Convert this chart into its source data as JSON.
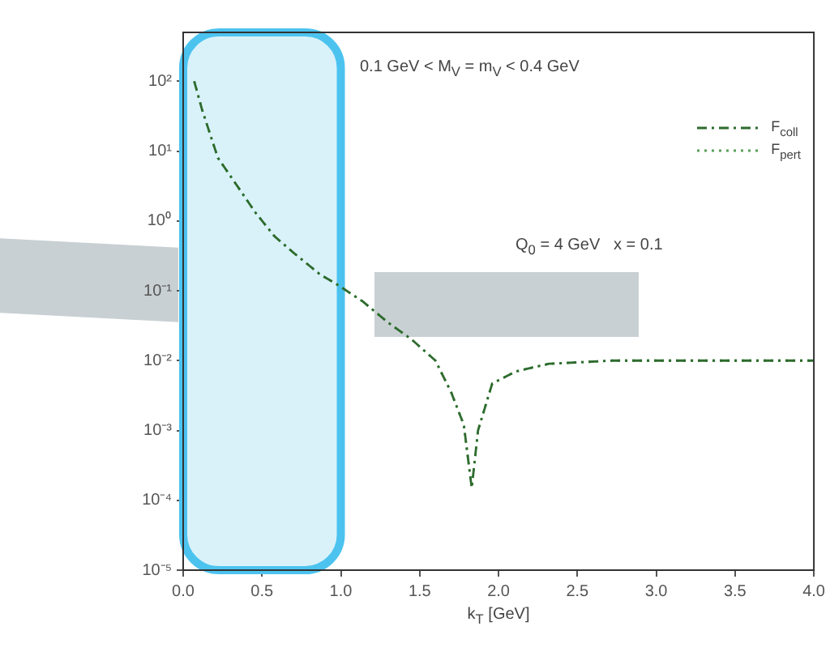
{
  "chart_data": {
    "type": "line",
    "annotations": [
      "0.1 GeV < M$_{V}$ = m$_{V}$ < 0.4 GeV",
      "Q$_{0}$ = 4 GeV   x = 0.1"
    ],
    "xlabel": "k$_{T}$ [GeV]",
    "x": [
      0.07,
      0.12,
      0.22,
      0.35,
      0.46,
      0.58,
      0.7,
      0.87,
      0.96,
      1.14,
      1.3,
      1.45,
      1.6,
      1.7,
      1.78,
      1.83,
      1.87,
      1.96,
      2.11,
      2.32,
      2.72,
      3.23,
      3.64,
      4.0
    ],
    "series": [
      {
        "name": "F$_{coll}$",
        "color": "#2e6b2e",
        "line_style": "dashed",
        "values": [
          100,
          39,
          8,
          3,
          1.3,
          0.6,
          0.35,
          0.17,
          0.13,
          0.07,
          0.035,
          0.02,
          0.01,
          0.0035,
          0.0012,
          0.00015,
          0.001,
          0.0047,
          0.007,
          0.009,
          0.01,
          0.01,
          0.01,
          0.01
        ]
      },
      {
        "name": "F$_{pert}$",
        "color": "#5aa05a",
        "line_style": "dotted",
        "values": [
          100,
          39,
          8,
          3,
          1.3,
          0.6,
          0.35,
          0.17,
          0.13,
          0.07,
          0.035,
          0.02,
          0.01,
          0.0035,
          0.0012,
          0.00015,
          0.001,
          0.0047,
          0.007,
          0.009,
          0.01,
          0.01,
          0.01,
          0.01
        ]
      }
    ],
    "xlim": [
      0,
      4
    ],
    "xticks": [
      {
        "value": 0,
        "label": "0.0"
      },
      {
        "value": 0.5,
        "label": "0.5"
      },
      {
        "value": 1,
        "label": "1.0"
      },
      {
        "value": 1.5,
        "label": "1.5"
      },
      {
        "value": 2,
        "label": "2.0"
      },
      {
        "value": 2.5,
        "label": "2.5"
      },
      {
        "value": 3,
        "label": "3.0"
      },
      {
        "value": 3.5,
        "label": "3.5"
      },
      {
        "value": 4,
        "label": "4.0"
      }
    ],
    "ylim": [
      1e-05,
      500
    ],
    "yticks": [
      {
        "value": 100,
        "label": "10²"
      },
      {
        "value": 10,
        "label": "10¹"
      },
      {
        "value": 1,
        "label": "10⁰"
      },
      {
        "value": 0.1,
        "label": "10⁻¹"
      },
      {
        "value": 0.01,
        "label": "10⁻²"
      },
      {
        "value": 0.001,
        "label": "10⁻³"
      },
      {
        "value": 0.0001,
        "label": "10⁻⁴"
      },
      {
        "value": 1e-05,
        "label": "10⁻⁵"
      }
    ],
    "log": "y",
    "grid": false,
    "legend": "top right",
    "marker": "none",
    "bands": [
      {
        "axis": "x",
        "from": 0,
        "to": 1,
        "color": "#d9f2fa"
      }
    ]
  }
}
